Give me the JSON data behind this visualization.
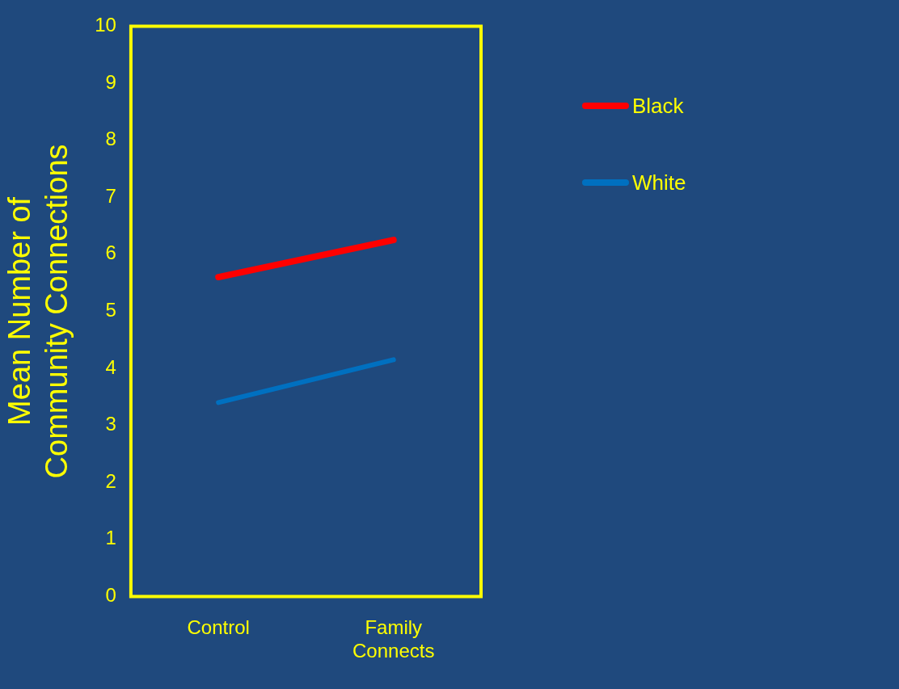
{
  "chart_data": {
    "type": "line",
    "ylabel": "Mean Number of Community Connections",
    "categories": [
      "Control",
      "Family Connects"
    ],
    "series": [
      {
        "name": "Black",
        "color": "#ff0000",
        "values": [
          5.6,
          6.25
        ]
      },
      {
        "name": "White",
        "color": "#0070c0",
        "values": [
          3.4,
          4.15
        ]
      }
    ],
    "ylim": [
      0,
      10
    ],
    "yticks": [
      0,
      1,
      2,
      3,
      4,
      5,
      6,
      7,
      8,
      9,
      10
    ],
    "grid": false,
    "legend": "top right",
    "marker": "none",
    "line_style": "solid"
  }
}
